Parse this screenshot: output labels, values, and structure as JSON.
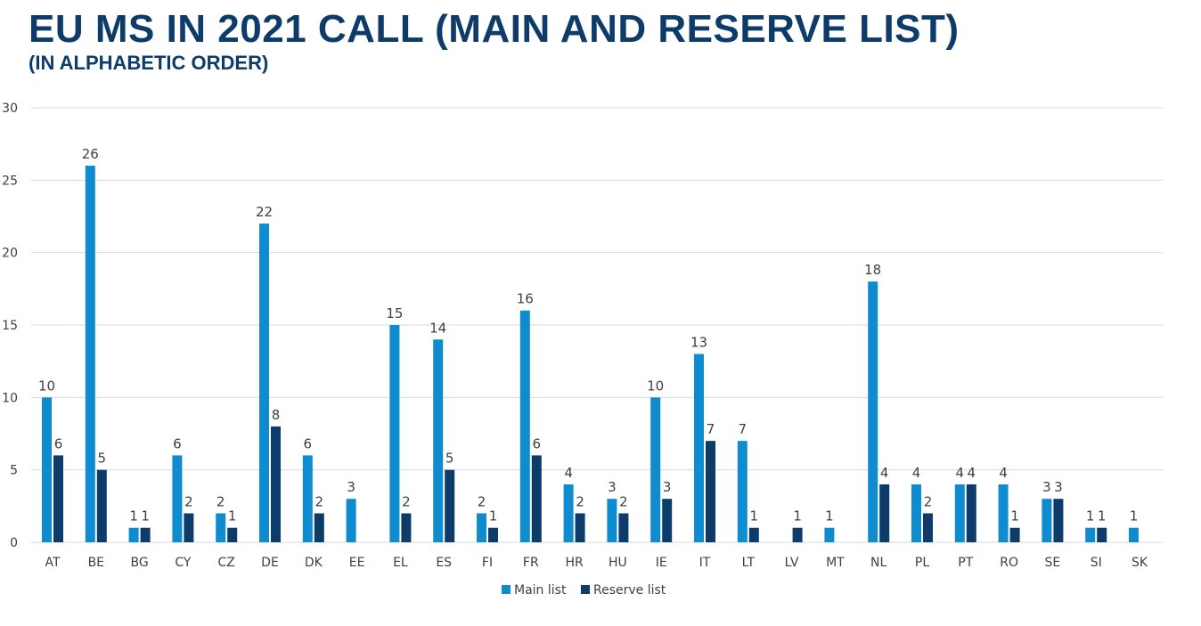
{
  "title": "EU MS IN 2021 CALL (MAIN AND RESERVE LIST)",
  "subtitle": "(IN ALPHABETIC ORDER)",
  "colors": {
    "main": "#0f8ccf",
    "reserve": "#0d3c6a",
    "title": "#0d3c6a",
    "grid": "#d9d9d9",
    "text": "#404040"
  },
  "chart_data": {
    "type": "bar",
    "categories": [
      "AT",
      "BE",
      "BG",
      "CY",
      "CZ",
      "DE",
      "DK",
      "EE",
      "EL",
      "ES",
      "FI",
      "FR",
      "HR",
      "HU",
      "IE",
      "IT",
      "LT",
      "LV",
      "MT",
      "NL",
      "PL",
      "PT",
      "RO",
      "SE",
      "SI",
      "SK"
    ],
    "series": [
      {
        "name": "Main list",
        "values": [
          10,
          26,
          1,
          6,
          2,
          22,
          6,
          3,
          15,
          14,
          2,
          16,
          4,
          3,
          10,
          13,
          7,
          null,
          1,
          18,
          4,
          4,
          4,
          3,
          1,
          1
        ]
      },
      {
        "name": "Reserve list",
        "values": [
          6,
          5,
          1,
          2,
          1,
          8,
          2,
          null,
          2,
          5,
          1,
          6,
          2,
          2,
          3,
          7,
          1,
          1,
          null,
          4,
          2,
          4,
          1,
          3,
          1,
          null
        ]
      }
    ],
    "ylim": [
      0,
      30
    ],
    "yticks": [
      0,
      5,
      10,
      15,
      20,
      25,
      30
    ],
    "grid": true,
    "legend": "bottom",
    "data_labels": true
  }
}
